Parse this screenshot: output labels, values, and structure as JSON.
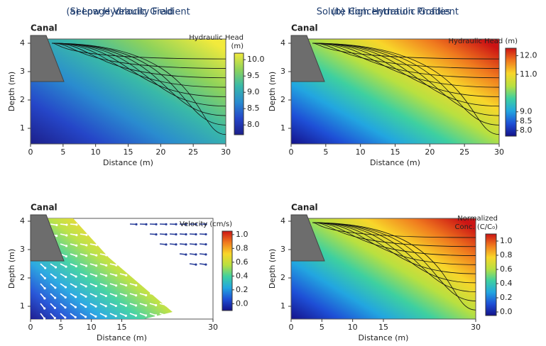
{
  "chart_data": [
    {
      "type": "contour",
      "title": "(a) Low Hydraulic Gradient",
      "annotation": "Canal",
      "xlabel": "Distance (m)",
      "ylabel": "Depth (m)",
      "xlim": [
        0,
        30
      ],
      "ylim": [
        0.45,
        4.15
      ],
      "xticks": [
        0,
        5,
        10,
        15,
        20,
        25,
        30
      ],
      "yticks": [
        1,
        2,
        3,
        4
      ],
      "colorbar": {
        "label": [
          "Hydraulic Head",
          "(m)"
        ],
        "lim": [
          7.7,
          10.2
        ],
        "ticks": [
          {
            "value": 8,
            "label": "8.0"
          },
          {
            "value": 8.5,
            "label": "8.5"
          },
          {
            "value": 9,
            "label": "9.0"
          },
          {
            "value": 9.5,
            "label": "9.5"
          },
          {
            "value": 10,
            "label": "10.0"
          }
        ],
        "colors": [
          "#1c1f8a",
          "#2546c8",
          "#2a8ccf",
          "#39b9a8",
          "#8fd35a",
          "#f2ea3c"
        ]
      }
    },
    {
      "type": "contour",
      "title": "(b) High Hydraulic Gradient",
      "annotation": "Canal",
      "xlabel": "Distance (m)",
      "ylabel": "Depth (m)",
      "xlim": [
        0,
        30
      ],
      "ylim": [
        0.45,
        4.15
      ],
      "xticks": [
        0,
        5,
        10,
        15,
        20,
        25,
        30
      ],
      "yticks": [
        1,
        2,
        3,
        4
      ],
      "colorbar": {
        "label": [
          "Hydraulic Head (m)"
        ],
        "lim": [
          7.7,
          12.4
        ],
        "ticks": [
          {
            "value": 8,
            "label": "8.0"
          },
          {
            "value": 8.5,
            "label": "8.5"
          },
          {
            "value": 9,
            "label": "9.0"
          },
          {
            "value": 11,
            "label": "11.0"
          },
          {
            "value": 12,
            "label": "12.0"
          }
        ],
        "colors": [
          "#14128a",
          "#1e4fd6",
          "#22a6e0",
          "#3ed0a0",
          "#b8e040",
          "#f8d62a",
          "#f07a1e",
          "#cc1414"
        ]
      }
    },
    {
      "type": "quiver",
      "title": "Seepage Velocity Field",
      "annotation": "Canal",
      "xlabel": "Distance (m)",
      "ylabel": "Depth (m)",
      "xlim": [
        0,
        30
      ],
      "ylim": [
        0.55,
        4.1
      ],
      "xticks": [
        0,
        5,
        10,
        15,
        30
      ],
      "yticks": [
        1,
        2,
        3,
        4
      ],
      "colorbar": {
        "label": [
          "Velocity (cm/s)"
        ],
        "lim": [
          -0.1,
          1.05
        ],
        "ticks": [
          {
            "value": 0,
            "label": "0.0"
          },
          0.2,
          0.4,
          0.6,
          0.8,
          {
            "value": 1,
            "label": "1.0"
          }
        ],
        "colors": [
          "#14128a",
          "#1e4fd6",
          "#22a6e0",
          "#3ed0a0",
          "#b8e040",
          "#f8d62a",
          "#f07a1e",
          "#cc1414"
        ]
      }
    },
    {
      "type": "contour",
      "title": "Solute Concentration Profiles",
      "annotation": "Canal",
      "xlabel": "Distance (m)",
      "ylabel": "Depth (m)",
      "xlim": [
        0,
        30
      ],
      "ylim": [
        0.55,
        4.1
      ],
      "xticks": [
        0,
        5,
        10,
        15,
        30
      ],
      "yticks": [
        1,
        2,
        3,
        4
      ],
      "colorbar": {
        "label": [
          "Normalized",
          "Conc. (C/C₀)"
        ],
        "lim": [
          -0.05,
          1.1
        ],
        "ticks": [
          {
            "value": 0,
            "label": "0.0"
          },
          0.2,
          0.4,
          0.6,
          0.8,
          {
            "value": 1,
            "label": "1.0"
          }
        ],
        "colors": [
          "#14128a",
          "#1e4fd6",
          "#22a6e0",
          "#3ed0a0",
          "#b8e040",
          "#f8d62a",
          "#f07a1e",
          "#cc1414"
        ]
      }
    }
  ]
}
